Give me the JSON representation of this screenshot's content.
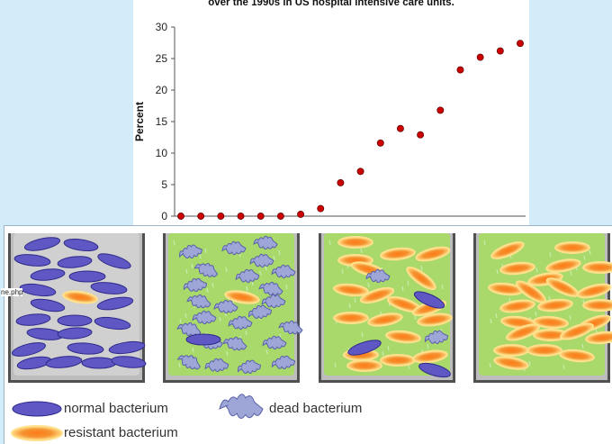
{
  "side_text": "ne.php",
  "chart_data": {
    "type": "scatter",
    "title": "over the 1990s in US hospital intensive care units.",
    "ylabel": "Percent",
    "xlabel": "",
    "yticks": [
      0,
      5,
      10,
      15,
      20,
      25,
      30
    ],
    "ylim": [
      0,
      30
    ],
    "marker_color": "#cc0000",
    "points": [
      0,
      0,
      0,
      0,
      0,
      0,
      0.3,
      1.2,
      5.3,
      7.1,
      11.6,
      13.9,
      12.9,
      16.8,
      23.2,
      25.2,
      26.2,
      27.4
    ]
  },
  "diagram": {
    "beakers": [
      {
        "background": "gray",
        "normal": 23,
        "resistant": 1,
        "dead": 0
      },
      {
        "background": "green",
        "normal": 1,
        "resistant": 1,
        "dead": 22
      },
      {
        "background": "green",
        "normal": 3,
        "resistant": 18,
        "dead": 2
      },
      {
        "background": "green",
        "normal": 0,
        "resistant": 24,
        "dead": 0
      }
    ],
    "colors": {
      "normal": "#5f57c4",
      "resistant": "#f08a2a",
      "dead": "#9ea6d8",
      "antibiotic": "#a8d96a",
      "medium": "#d0d0d0"
    }
  },
  "legend": {
    "normal": "normal bacterium",
    "dead": "dead bacterium",
    "resistant": "resistant bacterium"
  }
}
